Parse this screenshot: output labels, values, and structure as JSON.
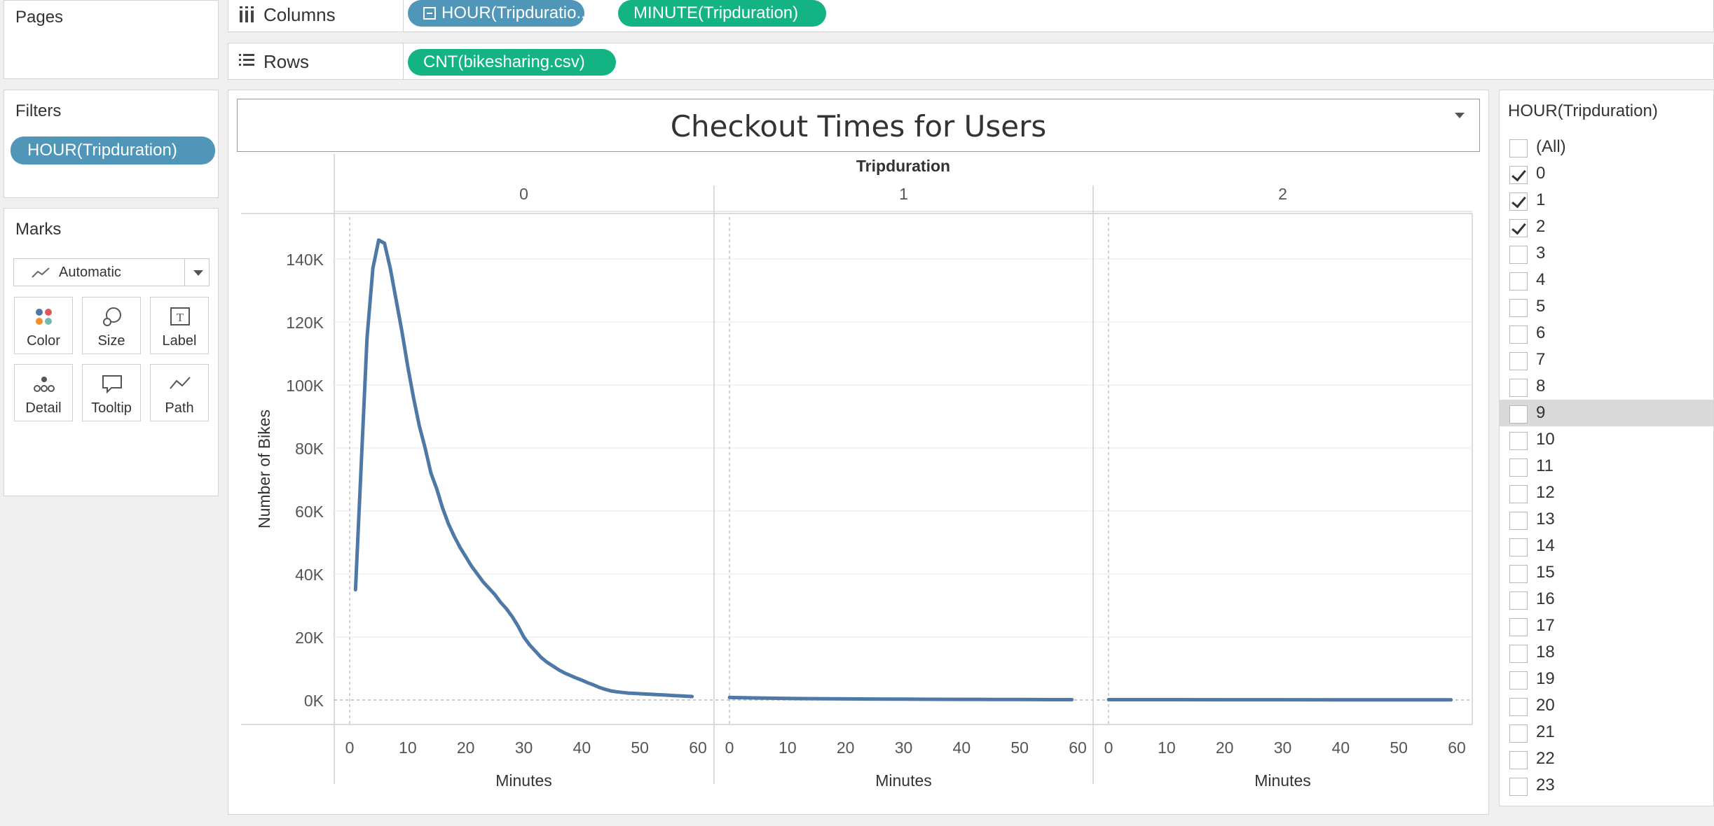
{
  "pages": {
    "title": "Pages"
  },
  "filters": {
    "title": "Filters",
    "pill": "HOUR(Tripduration)"
  },
  "marks": {
    "title": "Marks",
    "type": "Automatic",
    "buttons": [
      "Color",
      "Size",
      "Label",
      "Detail",
      "Tooltip",
      "Path"
    ]
  },
  "columns": {
    "label": "Columns",
    "pills": [
      "HOUR(Tripduratio..",
      "MINUTE(Tripduration)"
    ]
  },
  "rows": {
    "label": "Rows",
    "pills": [
      "CNT(bikesharing.csv)"
    ]
  },
  "view": {
    "title": "Checkout Times for Users"
  },
  "quick_filter": {
    "title": "HOUR(Tripduration)",
    "items": [
      {
        "label": "(All)",
        "checked": false
      },
      {
        "label": "0",
        "checked": true
      },
      {
        "label": "1",
        "checked": true
      },
      {
        "label": "2",
        "checked": true
      },
      {
        "label": "3",
        "checked": false
      },
      {
        "label": "4",
        "checked": false
      },
      {
        "label": "5",
        "checked": false
      },
      {
        "label": "6",
        "checked": false
      },
      {
        "label": "7",
        "checked": false
      },
      {
        "label": "8",
        "checked": false
      },
      {
        "label": "9",
        "checked": false,
        "highlighted": true
      },
      {
        "label": "10",
        "checked": false
      },
      {
        "label": "11",
        "checked": false
      },
      {
        "label": "12",
        "checked": false
      },
      {
        "label": "13",
        "checked": false
      },
      {
        "label": "14",
        "checked": false
      },
      {
        "label": "15",
        "checked": false
      },
      {
        "label": "16",
        "checked": false
      },
      {
        "label": "17",
        "checked": false
      },
      {
        "label": "18",
        "checked": false
      },
      {
        "label": "19",
        "checked": false
      },
      {
        "label": "20",
        "checked": false
      },
      {
        "label": "21",
        "checked": false
      },
      {
        "label": "22",
        "checked": false
      },
      {
        "label": "23",
        "checked": false
      }
    ]
  },
  "colors": {
    "line": "#4e79a7",
    "blue_pill": "#4f96b8",
    "green_pill": "#14b383"
  },
  "chart_data": {
    "type": "line",
    "title": "Checkout Times for Users",
    "column_header": "Tripduration",
    "ylabel": "Number of Bikes",
    "xlabel": "Minutes",
    "ylim": [
      0,
      150000
    ],
    "y_ticks": [
      0,
      20000,
      40000,
      60000,
      80000,
      100000,
      120000,
      140000
    ],
    "y_tick_labels": [
      "0K",
      "20K",
      "40K",
      "60K",
      "80K",
      "100K",
      "120K",
      "140K"
    ],
    "xlim": [
      0,
      60
    ],
    "x_ticks": [
      0,
      10,
      20,
      30,
      40,
      50,
      60
    ],
    "panels": [
      {
        "label": "0",
        "points": [
          [
            1,
            35000
          ],
          [
            3,
            115000
          ],
          [
            4,
            137000
          ],
          [
            5,
            146000
          ],
          [
            6,
            145000
          ],
          [
            7,
            137000
          ],
          [
            8,
            127000
          ],
          [
            9,
            117000
          ],
          [
            10,
            106000
          ],
          [
            11,
            96000
          ],
          [
            12,
            87000
          ],
          [
            13,
            80000
          ],
          [
            14,
            72000
          ],
          [
            15,
            67000
          ],
          [
            16,
            61000
          ],
          [
            17,
            56000
          ],
          [
            18,
            52000
          ],
          [
            19,
            48500
          ],
          [
            20,
            45500
          ],
          [
            21,
            42500
          ],
          [
            22,
            40000
          ],
          [
            23,
            37500
          ],
          [
            24,
            35500
          ],
          [
            25,
            33500
          ],
          [
            26,
            31000
          ],
          [
            27,
            29000
          ],
          [
            28,
            26500
          ],
          [
            29,
            23500
          ],
          [
            30,
            20000
          ],
          [
            31,
            17500
          ],
          [
            32,
            15500
          ],
          [
            33,
            13500
          ],
          [
            34,
            12000
          ],
          [
            35,
            10800
          ],
          [
            36,
            9600
          ],
          [
            37,
            8600
          ],
          [
            38,
            7800
          ],
          [
            39,
            7000
          ],
          [
            40,
            6300
          ],
          [
            41,
            5500
          ],
          [
            42,
            4800
          ],
          [
            43,
            4000
          ],
          [
            44,
            3400
          ],
          [
            45,
            2900
          ],
          [
            46,
            2600
          ],
          [
            47,
            2400
          ],
          [
            48,
            2200
          ],
          [
            49,
            2100
          ],
          [
            50,
            2000
          ],
          [
            51,
            1900
          ],
          [
            52,
            1800
          ],
          [
            53,
            1700
          ],
          [
            54,
            1600
          ],
          [
            55,
            1500
          ],
          [
            56,
            1400
          ],
          [
            57,
            1300
          ],
          [
            58,
            1200
          ],
          [
            59,
            1100
          ]
        ]
      },
      {
        "label": "1",
        "points": [
          [
            0,
            800
          ],
          [
            5,
            650
          ],
          [
            10,
            500
          ],
          [
            15,
            420
          ],
          [
            20,
            350
          ],
          [
            25,
            300
          ],
          [
            30,
            260
          ],
          [
            35,
            220
          ],
          [
            40,
            200
          ],
          [
            45,
            170
          ],
          [
            50,
            150
          ],
          [
            55,
            120
          ],
          [
            59,
            100
          ]
        ]
      },
      {
        "label": "2",
        "points": [
          [
            0,
            120
          ],
          [
            10,
            100
          ],
          [
            20,
            90
          ],
          [
            30,
            80
          ],
          [
            40,
            70
          ],
          [
            50,
            60
          ],
          [
            59,
            50
          ]
        ]
      }
    ]
  }
}
